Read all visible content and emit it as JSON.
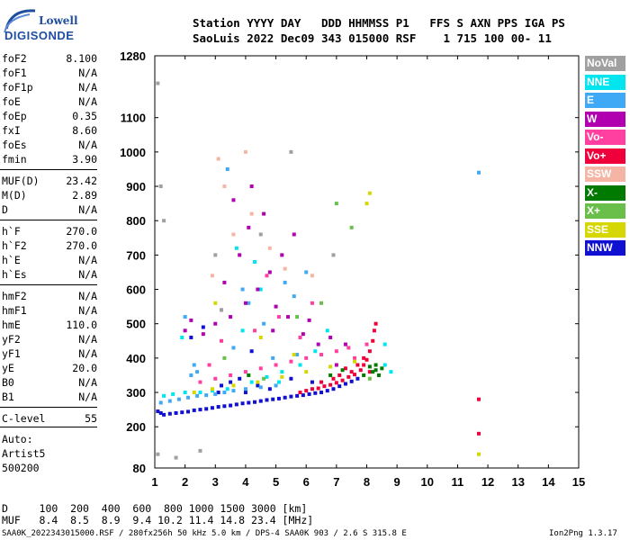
{
  "logo": {
    "line1": "Lowell",
    "line2": "DIGISONDE"
  },
  "header": {
    "line1": "Station YYYY DAY   DDD HHMMSS P1   FFS S AXN PPS IGA PS",
    "line2": "SaoLuis 2022 Dec09 343 015000 RSF    1 715 100 00- 11"
  },
  "params": [
    {
      "k": "foF2",
      "v": "8.100"
    },
    {
      "k": "foF1",
      "v": "N/A"
    },
    {
      "k": "foF1p",
      "v": "N/A"
    },
    {
      "k": "foE",
      "v": "N/A"
    },
    {
      "k": "foEp",
      "v": "0.35"
    },
    {
      "k": "fxI",
      "v": "8.60"
    },
    {
      "k": "foEs",
      "v": "N/A"
    },
    {
      "k": "fmin",
      "v": "3.90"
    },
    {
      "k": "MUF(D)",
      "v": "23.42"
    },
    {
      "k": "M(D)",
      "v": "2.89"
    },
    {
      "k": "D",
      "v": "N/A"
    },
    {
      "k": "h`F",
      "v": "270.0"
    },
    {
      "k": "h`F2",
      "v": "270.0"
    },
    {
      "k": "h`E",
      "v": "N/A"
    },
    {
      "k": "h`Es",
      "v": "N/A"
    },
    {
      "k": "hmF2",
      "v": "N/A"
    },
    {
      "k": "hmF1",
      "v": "N/A"
    },
    {
      "k": "hmE",
      "v": "110.0"
    },
    {
      "k": "yF2",
      "v": "N/A"
    },
    {
      "k": "yF1",
      "v": "N/A"
    },
    {
      "k": "yE",
      "v": "20.0"
    },
    {
      "k": "B0",
      "v": "N/A"
    },
    {
      "k": "B1",
      "v": "N/A"
    },
    {
      "k": "C-level",
      "v": "55"
    }
  ],
  "auto": {
    "line1": "Auto:",
    "line2": "Artist5",
    "line3": "500200"
  },
  "table": {
    "d_row": "D     100  200  400  600  800 1000 1500 3000 [km]",
    "muf_row": "MUF   8.4  8.5  8.9  9.4 10.2 11.4 14.8 23.4 [MHz]"
  },
  "footer": {
    "left": "SAA0K_2022343015000.RSF / 280fx256h 50 kHz 5.0 km / DPS-4 SAA0K 903 / 2.6 S 315.8 E",
    "right": "Ion2Png 1.3.17"
  },
  "chart_data": {
    "type": "scatter",
    "title": "",
    "xlabel": "",
    "ylabel": "",
    "xlim": [
      1,
      15
    ],
    "ylim": [
      80,
      1280
    ],
    "x_ticks": [
      1,
      2,
      3,
      4,
      5,
      6,
      7,
      8,
      9,
      10,
      11,
      12,
      13,
      14,
      15
    ],
    "y_ticks": [
      80,
      200,
      300,
      400,
      500,
      600,
      700,
      800,
      900,
      1000,
      1100,
      1280
    ],
    "legend": [
      {
        "name": "NoVal",
        "color": "#a0a0a0"
      },
      {
        "name": "NNE",
        "color": "#00e5ee"
      },
      {
        "name": "E",
        "color": "#3fa9f5"
      },
      {
        "name": "W",
        "color": "#b000b0"
      },
      {
        "name": "Vo-",
        "color": "#ff40a0"
      },
      {
        "name": "Vo+",
        "color": "#f0003a"
      },
      {
        "name": "SSW",
        "color": "#f5b5a5"
      },
      {
        "name": "X-",
        "color": "#007a00"
      },
      {
        "name": "X+",
        "color": "#6abf4b"
      },
      {
        "name": "SSE",
        "color": "#d6d600"
      },
      {
        "name": "NNW",
        "color": "#1010d0"
      }
    ],
    "series": [
      {
        "name": "NNW",
        "points": [
          [
            1.1,
            245
          ],
          [
            1.2,
            240
          ],
          [
            1.3,
            235
          ],
          [
            1.5,
            238
          ],
          [
            1.7,
            240
          ],
          [
            1.9,
            242
          ],
          [
            2.1,
            244
          ],
          [
            2.3,
            248
          ],
          [
            2.5,
            250
          ],
          [
            2.7,
            252
          ],
          [
            2.9,
            255
          ],
          [
            3.1,
            258
          ],
          [
            3.3,
            260
          ],
          [
            3.5,
            262
          ],
          [
            3.7,
            265
          ],
          [
            3.9,
            268
          ],
          [
            4.1,
            270
          ],
          [
            4.3,
            272
          ],
          [
            4.5,
            275
          ],
          [
            4.7,
            278
          ],
          [
            4.9,
            280
          ],
          [
            5.1,
            282
          ],
          [
            5.3,
            285
          ],
          [
            5.5,
            288
          ],
          [
            5.7,
            290
          ],
          [
            5.9,
            292
          ],
          [
            6.1,
            295
          ],
          [
            6.3,
            298
          ],
          [
            6.5,
            300
          ],
          [
            6.7,
            305
          ],
          [
            6.9,
            310
          ],
          [
            7.1,
            318
          ],
          [
            7.3,
            325
          ],
          [
            7.5,
            332
          ],
          [
            7.7,
            340
          ],
          [
            3.2,
            320
          ],
          [
            3.5,
            330
          ],
          [
            3.8,
            340
          ],
          [
            4.0,
            300
          ],
          [
            4.4,
            320
          ],
          [
            4.8,
            310
          ],
          [
            2.2,
            460
          ],
          [
            2.6,
            490
          ],
          [
            3.1,
            300
          ],
          [
            4.2,
            420
          ],
          [
            5.5,
            340
          ],
          [
            6.2,
            330
          ]
        ]
      },
      {
        "name": "Vo+",
        "points": [
          [
            5.8,
            300
          ],
          [
            6.0,
            305
          ],
          [
            6.2,
            310
          ],
          [
            6.4,
            312
          ],
          [
            6.6,
            318
          ],
          [
            6.8,
            322
          ],
          [
            7.0,
            328
          ],
          [
            7.2,
            335
          ],
          [
            7.4,
            345
          ],
          [
            7.6,
            352
          ],
          [
            7.8,
            365
          ],
          [
            7.9,
            380
          ],
          [
            8.0,
            395
          ],
          [
            8.1,
            420
          ],
          [
            8.2,
            450
          ],
          [
            8.25,
            480
          ],
          [
            8.3,
            500
          ],
          [
            7.5,
            360
          ],
          [
            7.7,
            380
          ],
          [
            6.5,
            330
          ],
          [
            7.1,
            350
          ],
          [
            7.9,
            400
          ],
          [
            8.1,
            360
          ],
          [
            7.3,
            370
          ],
          [
            6.9,
            340
          ],
          [
            11.7,
            280
          ],
          [
            11.7,
            180
          ]
        ]
      },
      {
        "name": "E",
        "points": [
          [
            1.2,
            270
          ],
          [
            1.5,
            275
          ],
          [
            1.8,
            280
          ],
          [
            2.1,
            285
          ],
          [
            2.4,
            290
          ],
          [
            2.7,
            292
          ],
          [
            3.0,
            295
          ],
          [
            3.3,
            300
          ],
          [
            3.6,
            305
          ],
          [
            4.0,
            310
          ],
          [
            4.5,
            315
          ],
          [
            5.0,
            320
          ],
          [
            2.2,
            350
          ],
          [
            2.3,
            380
          ],
          [
            2.4,
            360
          ],
          [
            3.9,
            600
          ],
          [
            4.1,
            560
          ],
          [
            4.6,
            500
          ],
          [
            5.3,
            620
          ],
          [
            5.6,
            580
          ],
          [
            6.0,
            650
          ],
          [
            4.9,
            400
          ],
          [
            3.6,
            430
          ],
          [
            2.0,
            520
          ],
          [
            3.4,
            950
          ],
          [
            5.7,
            410
          ],
          [
            11.7,
            940
          ]
        ]
      },
      {
        "name": "NNE",
        "points": [
          [
            1.3,
            290
          ],
          [
            1.6,
            295
          ],
          [
            2.0,
            300
          ],
          [
            2.5,
            300
          ],
          [
            2.9,
            305
          ],
          [
            3.4,
            310
          ],
          [
            4.2,
            330
          ],
          [
            4.7,
            345
          ],
          [
            5.2,
            360
          ],
          [
            5.8,
            380
          ],
          [
            6.3,
            420
          ],
          [
            6.7,
            480
          ],
          [
            8.6,
            380
          ],
          [
            8.8,
            360
          ],
          [
            8.6,
            440
          ],
          [
            3.7,
            720
          ],
          [
            4.3,
            680
          ],
          [
            3.9,
            480
          ],
          [
            5.1,
            330
          ],
          [
            4.5,
            600
          ],
          [
            1.9,
            460
          ]
        ]
      },
      {
        "name": "W",
        "points": [
          [
            2.0,
            480
          ],
          [
            2.2,
            510
          ],
          [
            2.6,
            470
          ],
          [
            3.0,
            500
          ],
          [
            3.2,
            540
          ],
          [
            3.5,
            520
          ],
          [
            4.0,
            560
          ],
          [
            4.4,
            600
          ],
          [
            4.8,
            650
          ],
          [
            5.2,
            700
          ],
          [
            5.6,
            760
          ],
          [
            3.3,
            620
          ],
          [
            3.8,
            700
          ],
          [
            4.1,
            780
          ],
          [
            4.6,
            820
          ],
          [
            5.0,
            550
          ],
          [
            5.4,
            520
          ],
          [
            5.9,
            470
          ],
          [
            6.4,
            440
          ],
          [
            6.8,
            460
          ],
          [
            7.3,
            440
          ],
          [
            4.2,
            900
          ],
          [
            3.6,
            860
          ],
          [
            4.9,
            480
          ],
          [
            6.1,
            510
          ],
          [
            7.0,
            380
          ]
        ]
      },
      {
        "name": "Vo-",
        "points": [
          [
            2.5,
            330
          ],
          [
            3.0,
            340
          ],
          [
            3.5,
            350
          ],
          [
            4.0,
            360
          ],
          [
            4.5,
            370
          ],
          [
            5.0,
            380
          ],
          [
            5.5,
            390
          ],
          [
            6.0,
            400
          ],
          [
            6.5,
            410
          ],
          [
            7.0,
            420
          ],
          [
            7.4,
            430
          ],
          [
            3.2,
            450
          ],
          [
            4.3,
            480
          ],
          [
            5.1,
            520
          ],
          [
            6.2,
            560
          ],
          [
            4.7,
            640
          ],
          [
            5.8,
            460
          ],
          [
            7.6,
            400
          ],
          [
            8.0,
            440
          ],
          [
            2.8,
            380
          ]
        ]
      },
      {
        "name": "X-",
        "points": [
          [
            8.2,
            360
          ],
          [
            8.3,
            365
          ],
          [
            8.4,
            350
          ],
          [
            8.5,
            370
          ],
          [
            8.3,
            380
          ],
          [
            7.9,
            350
          ],
          [
            8.1,
            375
          ],
          [
            6.8,
            350
          ],
          [
            7.2,
            365
          ],
          [
            4.1,
            350
          ]
        ]
      },
      {
        "name": "X+",
        "points": [
          [
            7.0,
            850
          ],
          [
            7.5,
            780
          ],
          [
            6.5,
            560
          ],
          [
            5.7,
            520
          ],
          [
            8.1,
            340
          ],
          [
            3.3,
            400
          ],
          [
            4.6,
            340
          ]
        ]
      },
      {
        "name": "SSE",
        "points": [
          [
            2.3,
            300
          ],
          [
            2.9,
            310
          ],
          [
            3.6,
            320
          ],
          [
            4.4,
            330
          ],
          [
            5.2,
            345
          ],
          [
            6.0,
            360
          ],
          [
            6.8,
            375
          ],
          [
            7.6,
            390
          ],
          [
            8.0,
            850
          ],
          [
            8.1,
            880
          ],
          [
            3.0,
            560
          ],
          [
            4.5,
            460
          ],
          [
            5.6,
            410
          ],
          [
            11.7,
            120
          ]
        ]
      },
      {
        "name": "SSW",
        "points": [
          [
            3.1,
            980
          ],
          [
            3.3,
            900
          ],
          [
            3.6,
            760
          ],
          [
            4.2,
            820
          ],
          [
            4.8,
            720
          ],
          [
            5.3,
            660
          ],
          [
            6.2,
            640
          ],
          [
            4.0,
            1000
          ],
          [
            2.9,
            640
          ]
        ]
      },
      {
        "name": "NoVal",
        "points": [
          [
            1.1,
            1200
          ],
          [
            1.2,
            900
          ],
          [
            1.3,
            800
          ],
          [
            1.1,
            120
          ],
          [
            1.7,
            110
          ],
          [
            2.5,
            130
          ],
          [
            3.0,
            700
          ],
          [
            3.2,
            540
          ],
          [
            4.5,
            760
          ],
          [
            6.9,
            700
          ],
          [
            5.5,
            1000
          ]
        ]
      }
    ]
  }
}
